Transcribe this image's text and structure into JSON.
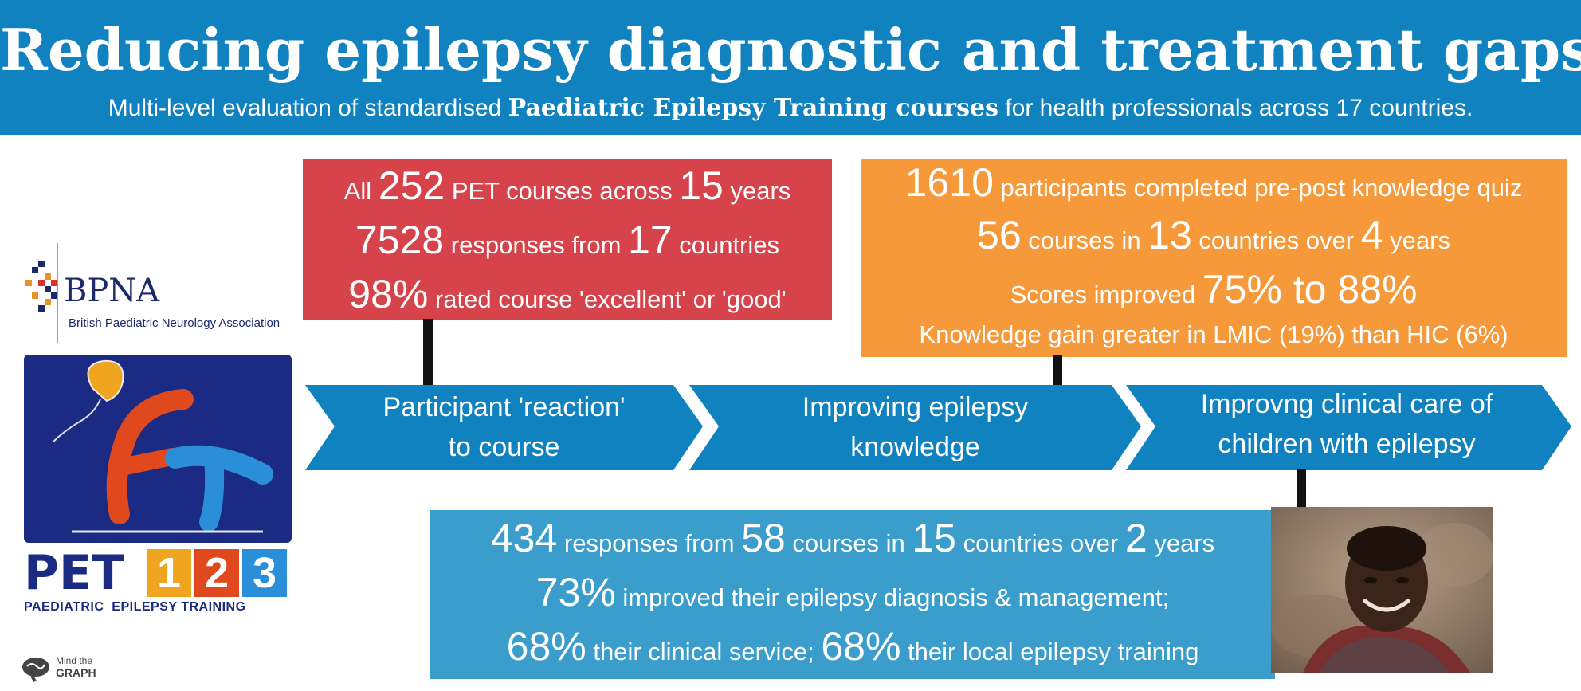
{
  "header": {
    "title": "Reducing epilepsy diagnostic and treatment gaps",
    "subtitle_before": "Multi-level evaluation of standardised ",
    "subtitle_bold": "Paediatric Epilepsy Training courses",
    "subtitle_after": " for health professionals across 17 countries."
  },
  "reaction_box": {
    "l1_a": "All ",
    "l1_n1": "252",
    "l1_b": " PET courses across ",
    "l1_n2": "15",
    "l1_c": " years",
    "l2_n1": "7528",
    "l2_a": " responses from ",
    "l2_n2": "17",
    "l2_b": " countries",
    "l3_n": "98%",
    "l3_a": " rated course 'excellent' or 'good'"
  },
  "knowledge_box": {
    "l1_n": "1610",
    "l1_a": " participants completed pre-post knowledge quiz",
    "l2_n1": "56",
    "l2_a": " courses in ",
    "l2_n2": "13",
    "l2_b": " countries over ",
    "l2_n3": "4",
    "l2_c": " years",
    "l3_a": "Scores improved ",
    "l3_n": "75% to 88%",
    "l4": "Knowledge gain greater in LMIC (19%) than HIC (6%)"
  },
  "care_box": {
    "l1_n1": "434",
    "l1_a": " responses from ",
    "l1_n2": "58",
    "l1_b": " courses in ",
    "l1_n3": "15",
    "l1_c": " countries over ",
    "l1_n4": "2",
    "l1_d": " years",
    "l2_n": "73%",
    "l2_a": " improved their epilepsy diagnosis & management;",
    "l3_n1": "68%",
    "l3_a": " their clinical service; ",
    "l3_n2": "68%",
    "l3_b": " their local epilepsy training"
  },
  "chevrons": [
    {
      "line1": "Participant 'reaction'",
      "line2": "to course"
    },
    {
      "line1": "Improving epilepsy",
      "line2": "knowledge"
    },
    {
      "line1": "Improvng clinical care of",
      "line2": "children with epilepsy"
    }
  ],
  "logos": {
    "bpna_abbr": "BPNA",
    "bpna_full": "British Paediatric Neurology Association",
    "pet_word": "PET",
    "pet_digits": [
      "1",
      "2",
      "3"
    ],
    "pet_caption": "PAEDIATRIC  EPILEPSY TRAINING",
    "mtg_line1": "Mind the",
    "mtg_line2": "GRAPH"
  },
  "colors": {
    "header": "#0f82bf",
    "reaction_box": "#d6434b",
    "knowledge_box": "#f5993a",
    "care_box": "#3a9dcb",
    "chevron": "#0f82bf"
  }
}
